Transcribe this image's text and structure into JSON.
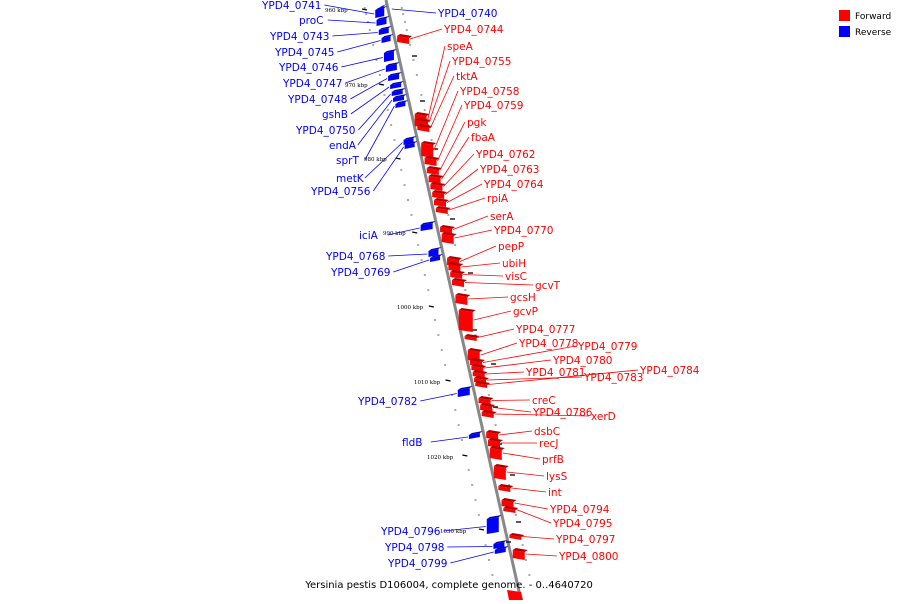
{
  "legend": {
    "items": [
      {
        "label": "Forward",
        "color": "#ff0000"
      },
      {
        "label": "Reverse",
        "color": "#0000ff"
      }
    ]
  },
  "caption": "Yersinia pestis D106004, complete genome. - 0..4640720",
  "colors": {
    "forward": "#ff0000",
    "reverse": "#0000ff",
    "backbone": "#888888"
  },
  "ticks": [
    {
      "label": "960 kbp"
    },
    {
      "label": "970 kbp"
    },
    {
      "label": "980 kbp"
    },
    {
      "label": "990 kbp"
    },
    {
      "label": "1000 kbp"
    },
    {
      "label": "1010 kbp"
    },
    {
      "label": "1020 kbp"
    },
    {
      "label": "1030 kbp"
    }
  ],
  "reverse_genes": [
    {
      "label": "YPD4_0741"
    },
    {
      "label": "proC"
    },
    {
      "label": "YPD4_0743"
    },
    {
      "label": "YPD4_0745"
    },
    {
      "label": "YPD4_0746"
    },
    {
      "label": "YPD4_0747"
    },
    {
      "label": "YPD4_0748"
    },
    {
      "label": "gshB"
    },
    {
      "label": "YPD4_0750"
    },
    {
      "label": "endA"
    },
    {
      "label": "sprT"
    },
    {
      "label": "metK"
    },
    {
      "label": "YPD4_0756"
    },
    {
      "label": "YPD4_0740"
    },
    {
      "label": "iciA"
    },
    {
      "label": "YPD4_0768"
    },
    {
      "label": "YPD4_0769"
    },
    {
      "label": "YPD4_0782"
    },
    {
      "label": "fldB"
    },
    {
      "label": "YPD4_0796"
    },
    {
      "label": "YPD4_0798"
    },
    {
      "label": "YPD4_0799"
    }
  ],
  "forward_genes": [
    {
      "label": "YPD4_0744"
    },
    {
      "label": "speA"
    },
    {
      "label": "YPD4_0755"
    },
    {
      "label": "tktA"
    },
    {
      "label": "YPD4_0758"
    },
    {
      "label": "YPD4_0759"
    },
    {
      "label": "pgk"
    },
    {
      "label": "fbaA"
    },
    {
      "label": "YPD4_0762"
    },
    {
      "label": "YPD4_0763"
    },
    {
      "label": "YPD4_0764"
    },
    {
      "label": "rpiA"
    },
    {
      "label": "serA"
    },
    {
      "label": "YPD4_0770"
    },
    {
      "label": "pepP"
    },
    {
      "label": "ubiH"
    },
    {
      "label": "visC"
    },
    {
      "label": "gcvT"
    },
    {
      "label": "gcsH"
    },
    {
      "label": "gcvP"
    },
    {
      "label": "YPD4_0777"
    },
    {
      "label": "YPD4_0778"
    },
    {
      "label": "YPD4_0779"
    },
    {
      "label": "YPD4_0780"
    },
    {
      "label": "YPD4_0781"
    },
    {
      "label": "YPD4_0783"
    },
    {
      "label": "YPD4_0784"
    },
    {
      "label": "creC"
    },
    {
      "label": "YPD4_0786"
    },
    {
      "label": "xerD"
    },
    {
      "label": "dsbC"
    },
    {
      "label": "recJ"
    },
    {
      "label": "prfB"
    },
    {
      "label": "lysS"
    },
    {
      "label": "int"
    },
    {
      "label": "YPD4_0794"
    },
    {
      "label": "YPD4_0795"
    },
    {
      "label": "YPD4_0797"
    },
    {
      "label": "YPD4_0800"
    }
  ]
}
